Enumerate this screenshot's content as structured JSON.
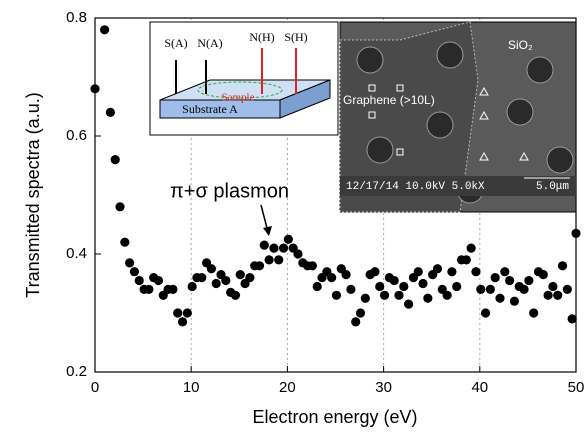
{
  "chart_data": {
    "type": "scatter",
    "xlabel": "Electron energy (eV)",
    "ylabel": "Transmitted spectra (a.u.)",
    "annotation": "π+σ plasmon",
    "color": "#000000",
    "grid": true,
    "xlim": [
      0,
      50
    ],
    "xticks": [
      0,
      10,
      20,
      30,
      40,
      50
    ],
    "ylim": [
      0.2,
      0.8
    ],
    "yticks": [
      0.2,
      0.4,
      0.6,
      0.8
    ],
    "x": [
      0,
      1,
      1.6,
      2.1,
      2.6,
      3.1,
      3.6,
      4.1,
      4.6,
      5.1,
      5.6,
      6.1,
      6.6,
      7.1,
      7.6,
      8.1,
      8.6,
      9.1,
      9.6,
      10.1,
      10.6,
      11.1,
      11.6,
      12.1,
      12.6,
      13.1,
      13.6,
      14.1,
      14.6,
      15.1,
      15.6,
      16.1,
      16.6,
      17.1,
      17.6,
      18.1,
      18.6,
      19.1,
      19.6,
      20.1,
      20.6,
      21.1,
      21.6,
      22.1,
      22.6,
      23.1,
      23.6,
      24.1,
      24.6,
      25.1,
      25.6,
      26.1,
      26.6,
      27.1,
      27.6,
      28.1,
      28.6,
      29.1,
      29.6,
      30.1,
      30.6,
      31.1,
      31.6,
      32.1,
      32.6,
      33.1,
      33.6,
      34.1,
      34.6,
      35.1,
      35.6,
      36.1,
      36.6,
      37.1,
      37.6,
      38.1,
      38.6,
      39.1,
      39.6,
      40.1,
      40.6,
      41.1,
      41.6,
      42.1,
      42.6,
      43.1,
      43.6,
      44.1,
      44.6,
      45.1,
      45.6,
      46.1,
      46.6,
      47.1,
      47.6,
      48.1,
      48.6,
      49.1,
      49.6,
      50
    ],
    "values": [
      0.68,
      0.78,
      0.64,
      0.56,
      0.48,
      0.42,
      0.385,
      0.37,
      0.355,
      0.34,
      0.34,
      0.36,
      0.355,
      0.33,
      0.34,
      0.34,
      0.3,
      0.285,
      0.3,
      0.345,
      0.36,
      0.36,
      0.385,
      0.375,
      0.35,
      0.365,
      0.355,
      0.335,
      0.33,
      0.365,
      0.35,
      0.36,
      0.38,
      0.38,
      0.415,
      0.39,
      0.41,
      0.39,
      0.41,
      0.425,
      0.41,
      0.4,
      0.385,
      0.38,
      0.38,
      0.345,
      0.36,
      0.37,
      0.36,
      0.33,
      0.375,
      0.365,
      0.34,
      0.285,
      0.3,
      0.325,
      0.365,
      0.37,
      0.345,
      0.33,
      0.36,
      0.355,
      0.33,
      0.345,
      0.315,
      0.36,
      0.37,
      0.35,
      0.325,
      0.365,
      0.375,
      0.34,
      0.33,
      0.37,
      0.345,
      0.39,
      0.39,
      0.41,
      0.37,
      0.34,
      0.3,
      0.34,
      0.36,
      0.325,
      0.37,
      0.355,
      0.32,
      0.345,
      0.34,
      0.355,
      0.3,
      0.37,
      0.365,
      0.33,
      0.345,
      0.33,
      0.38,
      0.34,
      0.29,
      0.435
    ],
    "schematic_labels": [
      "S(A)",
      "N(A)",
      "N(H)",
      "S(H)",
      "Sample",
      "Substrate A"
    ],
    "sem_labels": [
      "Graphene (>10L)",
      "SiO₂",
      "12/17/14 10.0kV 5.0kX",
      "5.0μm"
    ]
  }
}
